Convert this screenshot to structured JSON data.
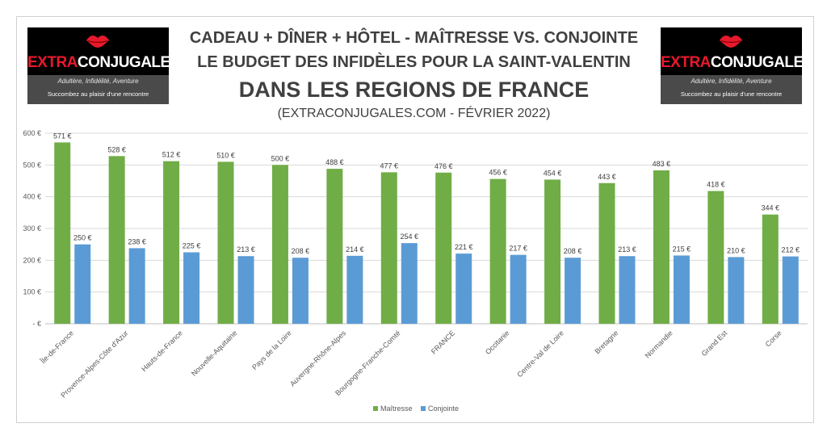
{
  "header": {
    "title_line1": "CADEAU + DÎNER + HÔTEL - MAÎTRESSE VS. CONJOINTE",
    "title_line2": "LE BUDGET DES INFIDÈLES POUR LA SAINT-VALENTIN",
    "title_line3": "DANS LES REGIONS DE FRANCE",
    "source": "(EXTRACONJUGALES.COM - FÉVRIER 2022)"
  },
  "logo": {
    "brand_part1": "EXTRA",
    "brand_part2": "CONJUGALES",
    "tagline": "Adultère, Infidélité, Aventure",
    "subline": "Succombez au plaisir d'une rencontre",
    "icon": "lips-icon"
  },
  "colors": {
    "maitresse": "#70ad47",
    "conjointe": "#5b9bd5",
    "brand_red": "#e8192c"
  },
  "chart_data": {
    "type": "bar",
    "categories": [
      "Île-de-France",
      "Provence-Alpes-Côte d'Azur",
      "Hauts-de-France",
      "Nouvelle-Aquitaine",
      "Pays de la Loire",
      "Auvergne-Rhône-Alpes",
      "Bourgogne-Franche-Comté",
      "FRANCE",
      "Occitanie",
      "Centre-Val de Loire",
      "Bretagne",
      "Normandie",
      "Grand Est",
      "Corse"
    ],
    "series": [
      {
        "name": "Maîtresse",
        "values": [
          571,
          528,
          512,
          510,
          500,
          488,
          477,
          476,
          456,
          454,
          443,
          483,
          418,
          344
        ]
      },
      {
        "name": "Conjointe",
        "values": [
          250,
          238,
          225,
          213,
          208,
          214,
          254,
          221,
          217,
          208,
          213,
          215,
          210,
          212
        ]
      }
    ],
    "value_labels": [
      [
        "571 €",
        "528 €",
        "512 €",
        "510 €",
        "500 €",
        "488 €",
        "477 €",
        "476 €",
        "456 €",
        "454 €",
        "443 €",
        "483 €",
        "418 €",
        "344 €"
      ],
      [
        "250 €",
        "238 €",
        "225 €",
        "213 €",
        "208 €",
        "214 €",
        "254 €",
        "221 €",
        "217 €",
        "208 €",
        "213 €",
        "215 €",
        "210 €",
        "212 €"
      ]
    ],
    "y_ticks": [
      0,
      100,
      200,
      300,
      400,
      500,
      600
    ],
    "y_tick_labels": [
      "-   €",
      "100 €",
      "200 €",
      "300 €",
      "400 €",
      "500 €",
      "600 €"
    ],
    "ylim": [
      0,
      600
    ],
    "grid": true,
    "legend_position": "bottom"
  }
}
